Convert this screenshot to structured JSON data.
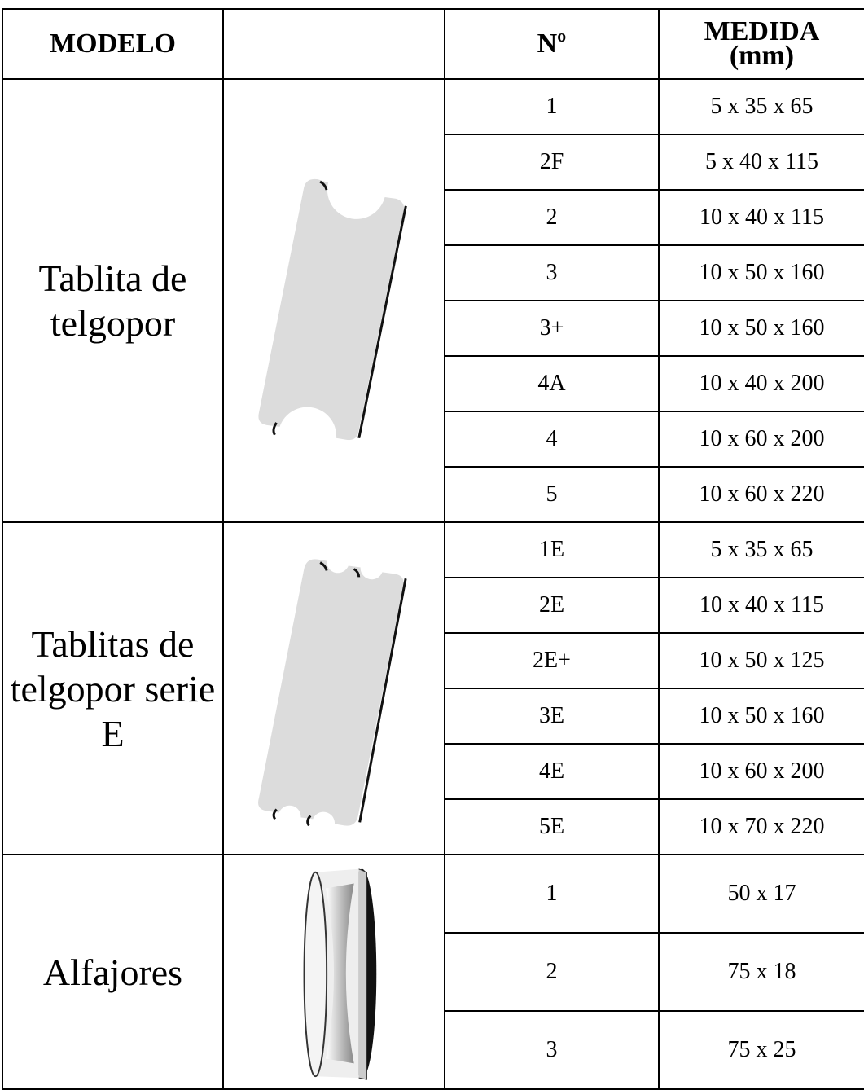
{
  "table": {
    "header": {
      "modelo": "MODELO",
      "numero": "Nº",
      "medida": "MEDIDA",
      "unit": "(mm)"
    },
    "groups": [
      {
        "name": "Tablita de telgopor",
        "items": [
          {
            "n": "1",
            "size": "5 x 35 x 65"
          },
          {
            "n": "2F",
            "size": "5 x 40 x 115"
          },
          {
            "n": "2",
            "size": "10 x 40 x 115"
          },
          {
            "n": "3",
            "size": "10 x 50 x 160"
          },
          {
            "n": "3+",
            "size": "10 x 50 x 160"
          },
          {
            "n": "4A",
            "size": "10 x 40 x 200"
          },
          {
            "n": "4",
            "size": "10 x 60 x 200"
          },
          {
            "n": "5",
            "size": "10 x 60 x 220"
          }
        ]
      },
      {
        "name": "Tablitas de telgopor serie E",
        "items": [
          {
            "n": "1E",
            "size": "5 x 35 x 65"
          },
          {
            "n": "2E",
            "size": "10 x 40 x 115"
          },
          {
            "n": "2E+",
            "size": "10 x 50 x 125"
          },
          {
            "n": "3E",
            "size": "10 x 50 x 160"
          },
          {
            "n": "4E",
            "size": "10 x 60 x 200"
          },
          {
            "n": "5E",
            "size": "10 x 70 x 220"
          }
        ]
      },
      {
        "name": "Alfajores",
        "items": [
          {
            "n": "1",
            "size": "50 x 17"
          },
          {
            "n": "2",
            "size": "75 x 18"
          },
          {
            "n": "3",
            "size": "75 x 25"
          }
        ]
      }
    ]
  }
}
